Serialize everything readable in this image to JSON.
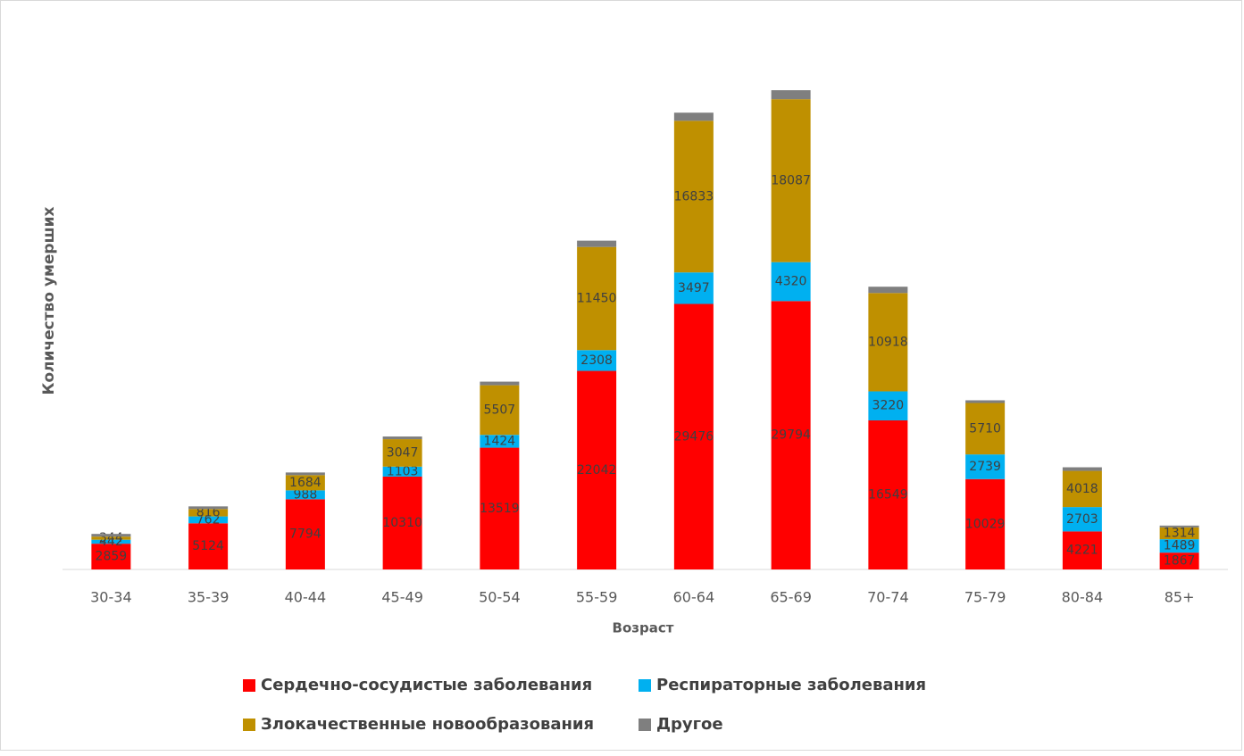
{
  "chart_data": {
    "type": "stacked-bar",
    "x_label": "Возраст",
    "y_label": "Количество умерших",
    "categories": [
      "30-34",
      "35-39",
      "40-44",
      "45-49",
      "50-54",
      "55-59",
      "60-64",
      "65-69",
      "70-74",
      "75-79",
      "80-84",
      "85+"
    ],
    "series": [
      {
        "name": "Сердечно-сосудистые заболевания",
        "color": "#ff0000",
        "values": [
          2859,
          5124,
          7794,
          10310,
          13519,
          22042,
          29476,
          29794,
          16549,
          10029,
          4221,
          1867
        ],
        "labels": true
      },
      {
        "name": "Респираторные заболевания",
        "color": "#00b0f0",
        "values": [
          442,
          762,
          988,
          1103,
          1424,
          2308,
          3497,
          4320,
          3220,
          2739,
          2703,
          1489
        ],
        "labels": true
      },
      {
        "name": "Злокачественные новообразования",
        "color": "#bf9000",
        "values": [
          344,
          816,
          1684,
          3047,
          5507,
          11450,
          16833,
          18087,
          10918,
          5710,
          4018,
          1314
        ],
        "labels": true
      },
      {
        "name": "Другое",
        "color": "#7f7f7f",
        "values": [
          300,
          300,
          300,
          300,
          400,
          700,
          900,
          1000,
          700,
          300,
          400,
          200
        ],
        "labels": false
      }
    ],
    "ylim": [
      0,
      54000
    ]
  }
}
